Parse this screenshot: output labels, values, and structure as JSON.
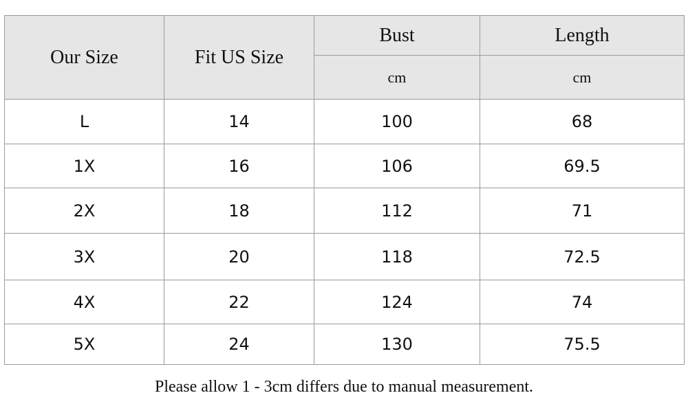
{
  "table": {
    "header": [
      "Our Size",
      "Fit US Size",
      "Bust",
      "Length"
    ],
    "units": [
      "cm",
      "cm"
    ],
    "rows": [
      [
        "L",
        14,
        100,
        68
      ],
      [
        "1X",
        16,
        106,
        69.5
      ],
      [
        "2X",
        18,
        112,
        71
      ],
      [
        "3X",
        20,
        118,
        72.5
      ],
      [
        "4X",
        22,
        124,
        74
      ],
      [
        "5X",
        24,
        130,
        75.5
      ]
    ]
  },
  "note": "Please allow 1 - 3cm differs due to manual measurement."
}
